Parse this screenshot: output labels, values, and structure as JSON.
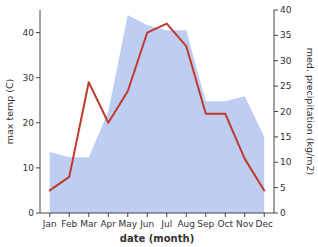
{
  "chart_data": {
    "type": "line",
    "x_label": "date (month)",
    "y_label": "max temp (C)",
    "y2_label": "med. precipitation (kg/m2)",
    "categories": [
      "Jan",
      "Feb",
      "Mar",
      "Apr",
      "May",
      "Jun",
      "Jul",
      "Aug",
      "Sep",
      "Oct",
      "Nov",
      "Dec"
    ],
    "series": [
      {
        "type": "line",
        "color": "#c0392b",
        "values": [
          5,
          8,
          29,
          20,
          27,
          40,
          42,
          37,
          22,
          22,
          12,
          5
        ]
      },
      {
        "type": "area",
        "color": "#b3c4f0",
        "axis": "y2",
        "values": [
          12,
          11,
          11,
          20,
          39,
          37,
          36,
          36,
          22,
          22,
          23,
          15
        ]
      }
    ],
    "ylim": [
      0,
      45
    ],
    "yticks": [
      0,
      10,
      20,
      30,
      40
    ],
    "y2lim": [
      0,
      40
    ],
    "y2ticks": [
      0,
      5,
      10,
      15,
      20,
      25,
      30,
      35,
      40
    ],
    "grid": false
  }
}
